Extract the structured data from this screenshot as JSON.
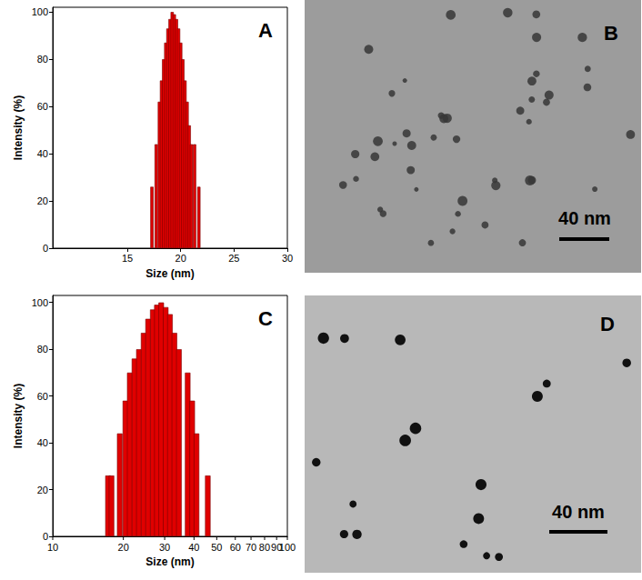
{
  "chart_data": [
    {
      "type": "bar",
      "title": "A",
      "xlabel": "Size (nm)",
      "ylabel": "Intensity (%)",
      "x": [
        17.3,
        17.7,
        18.0,
        18.2,
        18.4,
        18.6,
        18.8,
        19.0,
        19.2,
        19.4,
        19.6,
        19.8,
        20.0,
        20.2,
        20.4,
        20.6,
        20.8,
        21.0,
        21.3,
        21.7
      ],
      "values": [
        26,
        44,
        62,
        71,
        80,
        87,
        93,
        97,
        100,
        99,
        97,
        93,
        87,
        80,
        71,
        62,
        52,
        44,
        44,
        26
      ],
      "color": "#e00000",
      "xlim": [
        8,
        30
      ],
      "xticks": [
        15,
        20,
        25,
        30
      ],
      "ylim": [
        0,
        102
      ],
      "yticks": [
        0,
        20,
        40,
        60,
        80,
        100
      ]
    },
    {
      "type": "bar",
      "title": "C",
      "xlabel": "Size (nm)",
      "ylabel": "Intensity (%)",
      "log": "x",
      "x": [
        17.2,
        17.8,
        19.3,
        20.4,
        21.3,
        22.3,
        23.3,
        24.4,
        25.5,
        26.7,
        27.8,
        29.0,
        30.3,
        31.6,
        33.0,
        34.5,
        37.6,
        39.3,
        41.0,
        45.8
      ],
      "values": [
        26,
        26,
        44,
        58,
        70,
        76,
        80,
        87,
        93,
        97,
        99,
        100,
        98,
        95,
        87,
        80,
        70,
        58,
        44,
        26
      ],
      "color": "#e00000",
      "xlim": [
        10,
        100
      ],
      "xticks": [
        10,
        20,
        30,
        40,
        50,
        60,
        70,
        80,
        90,
        100
      ],
      "ylim": [
        0,
        103
      ],
      "yticks": [
        0,
        20,
        40,
        60,
        80,
        100
      ]
    }
  ],
  "images": [
    {
      "label": "B",
      "scale_bar": "40 nm"
    },
    {
      "label": "D",
      "scale_bar": "40 nm"
    }
  ]
}
